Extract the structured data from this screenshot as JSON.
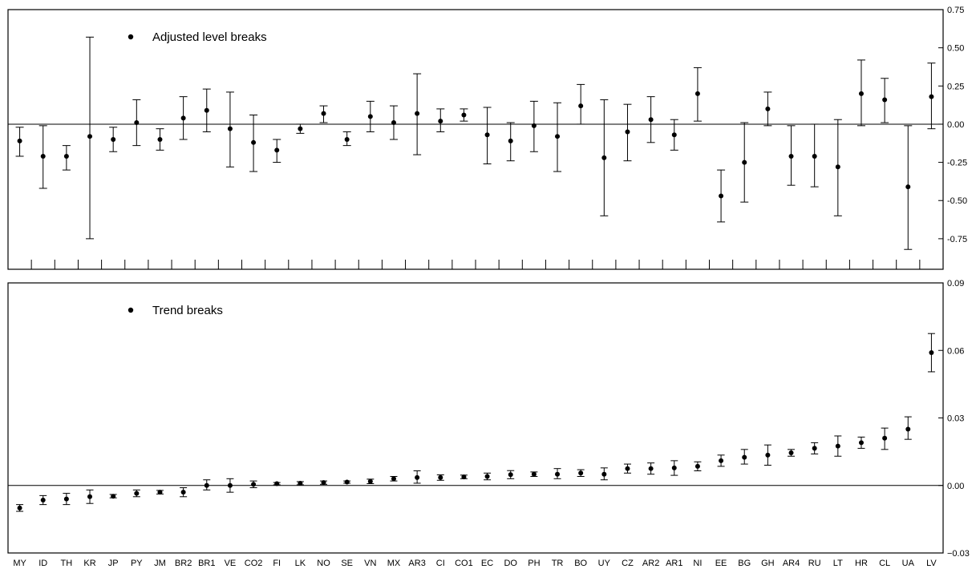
{
  "chart_data": [
    {
      "type": "scatter",
      "legend": "Adjusted level breaks",
      "legend_position": "top-left",
      "ylim": [
        -0.95,
        0.75
      ],
      "yticks": [
        "0.75",
        "0.50",
        "0.25",
        "0.00",
        "-0.25",
        "-0.50",
        "-0.75"
      ],
      "ytick_values": [
        0.75,
        0.5,
        0.25,
        0.0,
        -0.25,
        -0.5,
        -0.75
      ],
      "ytick_side": "right",
      "zero_line": true,
      "categories": [
        "MY",
        "ID",
        "TH",
        "KR",
        "JP",
        "PY",
        "JM",
        "BR2",
        "BR1",
        "VE",
        "CO2",
        "FI",
        "LK",
        "NO",
        "SE",
        "VN",
        "MX",
        "AR3",
        "CI",
        "CO1",
        "EC",
        "DO",
        "PH",
        "TR",
        "BO",
        "UY",
        "CZ",
        "AR2",
        "AR1",
        "NI",
        "EE",
        "BG",
        "GH",
        "AR4",
        "RU",
        "LT",
        "HR",
        "CL",
        "UA",
        "LV"
      ],
      "values": [
        -0.11,
        -0.21,
        -0.21,
        -0.08,
        -0.1,
        0.01,
        -0.1,
        0.04,
        0.09,
        -0.03,
        -0.12,
        -0.17,
        -0.03,
        0.07,
        -0.1,
        0.05,
        0.01,
        0.07,
        0.02,
        0.06,
        -0.07,
        -0.11,
        -0.01,
        -0.08,
        0.12,
        -0.22,
        -0.05,
        0.03,
        -0.07,
        0.2,
        -0.47,
        -0.25,
        0.1,
        -0.21,
        -0.21,
        -0.28,
        0.2,
        0.16,
        -0.41,
        0.18
      ],
      "lower": [
        -0.21,
        -0.42,
        -0.3,
        -0.75,
        -0.18,
        -0.14,
        -0.17,
        -0.1,
        -0.05,
        -0.28,
        -0.31,
        -0.25,
        -0.06,
        0.01,
        -0.14,
        -0.05,
        -0.1,
        -0.2,
        -0.05,
        0.02,
        -0.26,
        -0.24,
        -0.18,
        -0.31,
        0.0,
        -0.6,
        -0.24,
        -0.12,
        -0.17,
        0.02,
        -0.64,
        -0.51,
        -0.01,
        -0.4,
        -0.41,
        -0.6,
        -0.01,
        0.01,
        -0.82,
        -0.03
      ],
      "upper": [
        -0.02,
        -0.01,
        -0.14,
        0.57,
        -0.02,
        0.16,
        -0.03,
        0.18,
        0.23,
        0.21,
        0.06,
        -0.1,
        0.0,
        0.12,
        -0.05,
        0.15,
        0.12,
        0.33,
        0.1,
        0.1,
        0.11,
        0.01,
        0.15,
        0.14,
        0.26,
        0.16,
        0.13,
        0.18,
        0.03,
        0.37,
        -0.3,
        0.01,
        0.21,
        -0.01,
        0.0,
        0.03,
        0.42,
        0.3,
        -0.01,
        0.4
      ]
    },
    {
      "type": "scatter",
      "legend": "Trend breaks",
      "legend_position": "top-left",
      "ylim": [
        -0.03,
        0.09
      ],
      "yticks": [
        "0.09",
        "0.06",
        "0.03",
        "0.00",
        "−0.03"
      ],
      "ytick_values": [
        0.09,
        0.06,
        0.03,
        0.0,
        -0.03
      ],
      "ytick_side": "right",
      "zero_line": true,
      "categories": [
        "MY",
        "ID",
        "TH",
        "KR",
        "JP",
        "PY",
        "JM",
        "BR2",
        "BR1",
        "VE",
        "CO2",
        "FI",
        "LK",
        "NO",
        "SE",
        "VN",
        "MX",
        "AR3",
        "CI",
        "CO1",
        "EC",
        "DO",
        "PH",
        "TR",
        "BO",
        "UY",
        "CZ",
        "AR2",
        "AR1",
        "NI",
        "EE",
        "BG",
        "GH",
        "AR4",
        "RU",
        "LT",
        "HR",
        "CL",
        "UA",
        "LV"
      ],
      "values": [
        -0.01,
        -0.0065,
        -0.006,
        -0.005,
        -0.0048,
        -0.0035,
        -0.003,
        -0.003,
        0.0,
        0.0,
        0.0005,
        0.0008,
        0.001,
        0.0013,
        0.0015,
        0.0018,
        0.003,
        0.0035,
        0.0035,
        0.0038,
        0.004,
        0.0048,
        0.005,
        0.005,
        0.0055,
        0.005,
        0.0075,
        0.0075,
        0.0078,
        0.0085,
        0.011,
        0.0125,
        0.0135,
        0.0145,
        0.0165,
        0.0175,
        0.019,
        0.021,
        0.025,
        0.059
      ],
      "lower": [
        -0.0115,
        -0.0085,
        -0.0085,
        -0.008,
        -0.0055,
        -0.005,
        -0.0038,
        -0.005,
        -0.002,
        -0.003,
        -0.001,
        0.0003,
        0.0003,
        0.0005,
        0.001,
        0.0008,
        0.002,
        0.001,
        0.0023,
        0.003,
        0.0025,
        0.003,
        0.004,
        0.003,
        0.004,
        0.0025,
        0.0055,
        0.005,
        0.0045,
        0.0065,
        0.0085,
        0.0095,
        0.009,
        0.013,
        0.014,
        0.013,
        0.0165,
        0.016,
        0.0205,
        0.0505
      ],
      "upper": [
        -0.0085,
        -0.0045,
        -0.0035,
        -0.002,
        -0.004,
        -0.002,
        -0.0022,
        -0.001,
        0.0025,
        0.003,
        0.002,
        0.0013,
        0.0017,
        0.002,
        0.002,
        0.0028,
        0.004,
        0.0065,
        0.0047,
        0.0046,
        0.0055,
        0.0066,
        0.006,
        0.0075,
        0.007,
        0.0078,
        0.0095,
        0.01,
        0.011,
        0.0105,
        0.0135,
        0.016,
        0.018,
        0.016,
        0.019,
        0.022,
        0.0215,
        0.0255,
        0.0305,
        0.0675
      ]
    }
  ]
}
